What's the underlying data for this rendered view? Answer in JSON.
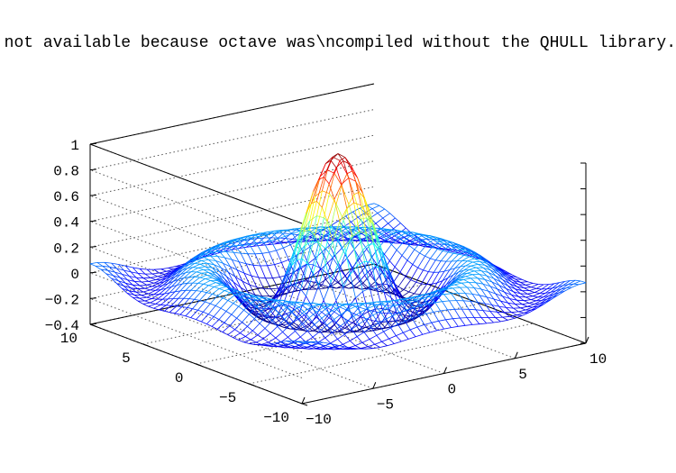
{
  "title": "Graphics not available because octave was\\ncompiled without the QHULL library.",
  "chart_data": {
    "type": "surface",
    "function": "sombrero z = sin(r)/r",
    "xlim": [
      -10,
      10
    ],
    "ylim": [
      -10,
      10
    ],
    "zlim": [
      -0.4,
      1
    ],
    "z_ticks": [
      "−0.4",
      "−0.2",
      "0",
      "0.2",
      "0.4",
      "0.6",
      "0.8",
      "1"
    ],
    "x_ticks": [
      "−10",
      "−5",
      "0",
      "5",
      "10"
    ],
    "y_ticks": [
      "−10",
      "−5",
      "0",
      "5",
      "10"
    ],
    "grid": true,
    "colormap": "jet",
    "mesh_resolution": 41
  }
}
